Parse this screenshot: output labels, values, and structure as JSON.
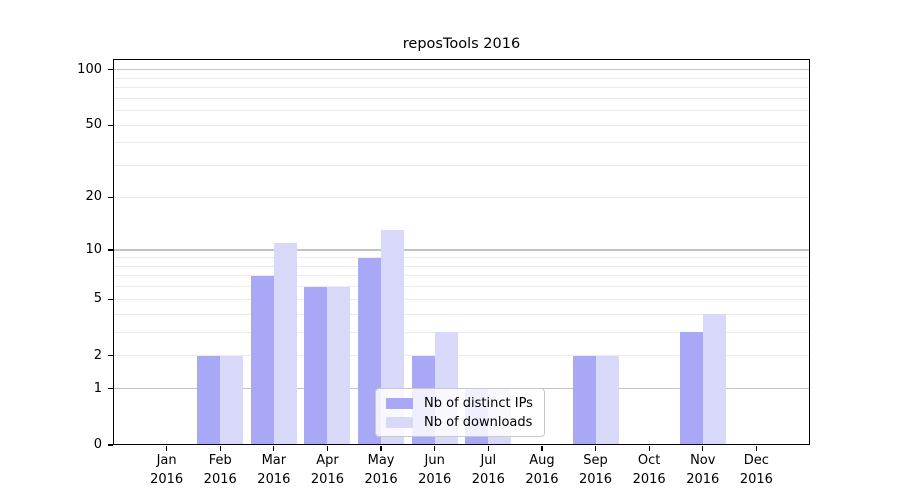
{
  "title": "reposTools 2016",
  "colors": {
    "distinct_ips": "#a8a8f6",
    "downloads": "#d8d8f8",
    "grid_major": "#c3c3c3",
    "grid_minor": "#ebebeb",
    "axis": "#000000",
    "legend_border": "#c9c9c9"
  },
  "chart_data": {
    "type": "bar",
    "title": "reposTools 2016",
    "months": [
      "Jan",
      "Feb",
      "Mar",
      "Apr",
      "May",
      "Jun",
      "Jul",
      "Aug",
      "Sep",
      "Oct",
      "Nov",
      "Dec"
    ],
    "year_label": "2016",
    "series": [
      {
        "name": "Nb of distinct IPs",
        "color": "#a8a8f6",
        "values": [
          0,
          2,
          7,
          6,
          9,
          2,
          1,
          0,
          2,
          0,
          3,
          0
        ]
      },
      {
        "name": "Nb of downloads",
        "color": "#d8d8f8",
        "values": [
          0,
          2,
          11,
          6,
          13,
          3,
          1,
          0,
          2,
          0,
          4,
          0
        ]
      }
    ],
    "y_axis": {
      "scale": "log10(value+1)",
      "tick_values": [
        0,
        1,
        2,
        5,
        10,
        20,
        50,
        100
      ],
      "major_gridlines": [
        1,
        10,
        100
      ],
      "minor_gridlines": [
        2,
        3,
        4,
        5,
        6,
        7,
        8,
        9,
        20,
        30,
        40,
        50,
        60,
        70,
        80,
        90
      ],
      "min": 0,
      "max": 114
    },
    "grid": "horizontal",
    "legend_position": "bottom-center"
  }
}
